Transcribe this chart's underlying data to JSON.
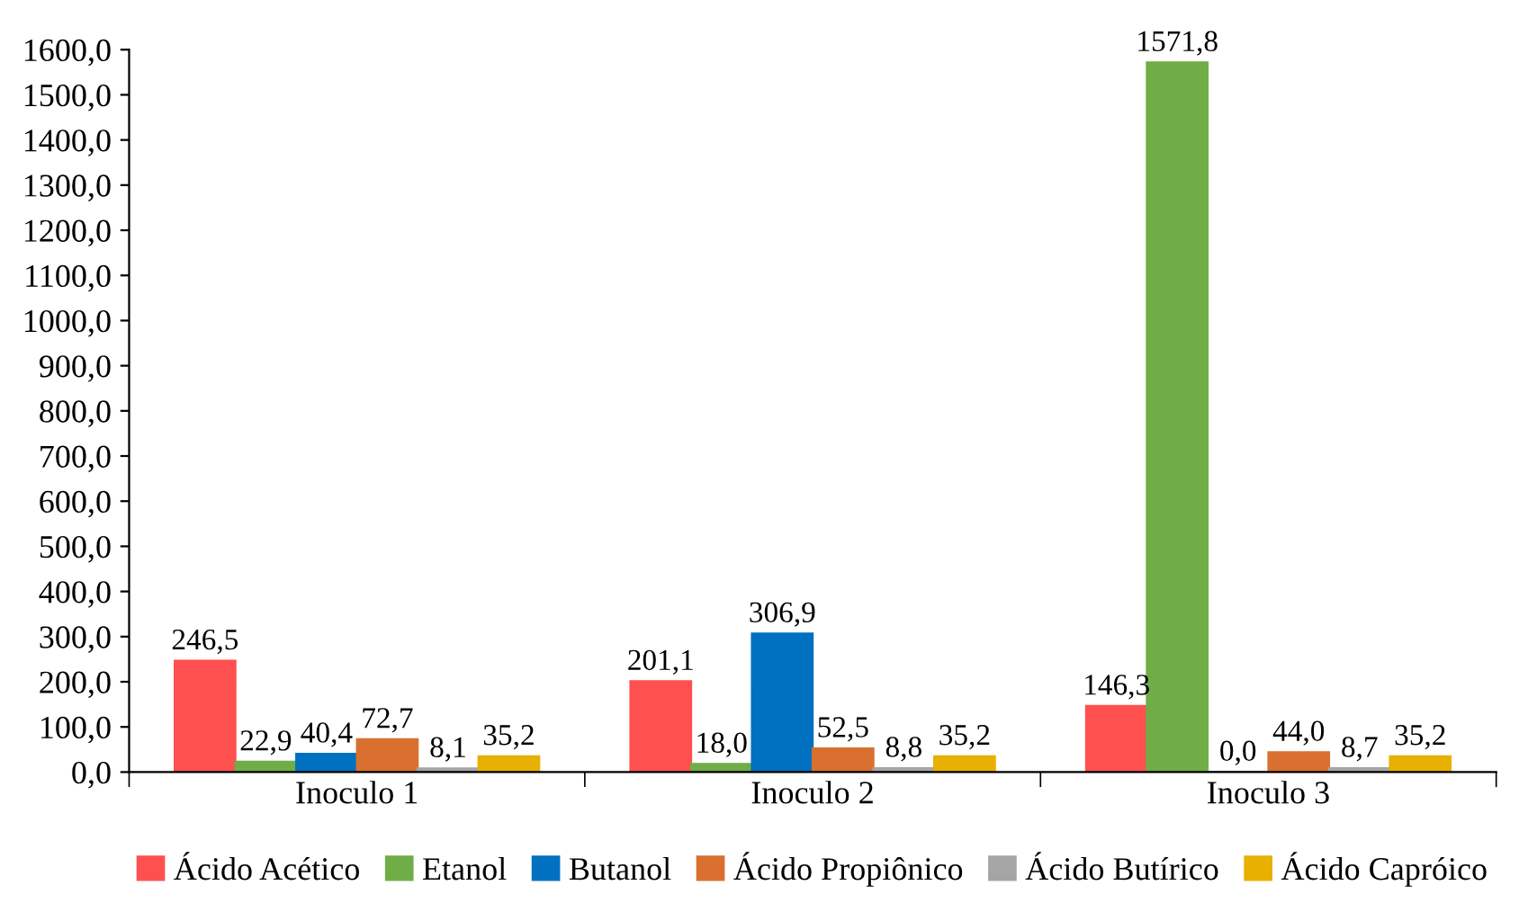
{
  "chart_data": {
    "type": "bar",
    "categories": [
      "Inoculo 1",
      "Inoculo 2",
      "Inoculo 3"
    ],
    "series": [
      {
        "name": "Ácido Acético",
        "color": "#ff5050",
        "values": [
          246.5,
          201.1,
          146.3
        ],
        "value_labels": [
          "246,5",
          "201,1",
          "146,3"
        ]
      },
      {
        "name": "Etanol",
        "color": "#70ad47",
        "values": [
          22.9,
          18.0,
          1571.8
        ],
        "value_labels": [
          "22,9",
          "18,0",
          "1571,8"
        ]
      },
      {
        "name": "Butanol",
        "color": "#0070c0",
        "values": [
          40.4,
          306.9,
          0.0
        ],
        "value_labels": [
          "40,4",
          "306,9",
          "0,0"
        ]
      },
      {
        "name": "Ácido Propiônico",
        "color": "#d9702f",
        "values": [
          72.7,
          52.5,
          44.0
        ],
        "value_labels": [
          "72,7",
          "52,5",
          "44,0"
        ]
      },
      {
        "name": "Ácido Butírico",
        "color": "#a5a5a5",
        "values": [
          8.1,
          8.8,
          8.7
        ],
        "value_labels": [
          "8,1",
          "8,8",
          "8,7"
        ]
      },
      {
        "name": "Ácido Capróico",
        "color": "#e8b000",
        "values": [
          35.2,
          35.2,
          35.2
        ],
        "value_labels": [
          "35,2",
          "35,2",
          "35,2"
        ]
      }
    ],
    "ylim": [
      0,
      1600
    ],
    "yticks": [
      {
        "value": 0,
        "label": "0,0"
      },
      {
        "value": 100,
        "label": "100,0"
      },
      {
        "value": 200,
        "label": "200,0"
      },
      {
        "value": 300,
        "label": "300,0"
      },
      {
        "value": 400,
        "label": "400,0"
      },
      {
        "value": 500,
        "label": "500,0"
      },
      {
        "value": 600,
        "label": "600,0"
      },
      {
        "value": 700,
        "label": "700,0"
      },
      {
        "value": 800,
        "label": "800,0"
      },
      {
        "value": 900,
        "label": "900,0"
      },
      {
        "value": 1000,
        "label": "1000,0"
      },
      {
        "value": 1100,
        "label": "1100,0"
      },
      {
        "value": 1200,
        "label": "1200,0"
      },
      {
        "value": 1300,
        "label": "1300,0"
      },
      {
        "value": 1400,
        "label": "1400,0"
      },
      {
        "value": 1500,
        "label": "1500,0"
      },
      {
        "value": 1600,
        "label": "1600,0"
      }
    ],
    "grid": false,
    "legend": "bottom"
  }
}
